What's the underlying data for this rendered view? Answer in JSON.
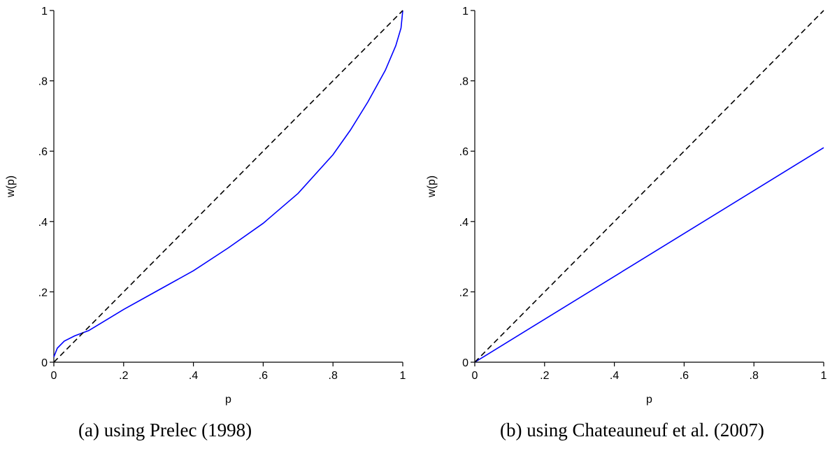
{
  "chart_data": [
    {
      "type": "line",
      "caption": "(a)  using Prelec (1998)",
      "xlabel": "p",
      "ylabel": "w(p)",
      "xlim": [
        0,
        1
      ],
      "ylim": [
        0,
        1
      ],
      "xticks": [
        "0",
        ".2",
        ".4",
        ".6",
        ".8",
        "1"
      ],
      "yticks": [
        "0",
        ".2",
        ".4",
        ".6",
        ".8",
        "1"
      ],
      "grid": false,
      "series": [
        {
          "color": "#0000ff",
          "style": "solid",
          "x": [
            0,
            0.01,
            0.03,
            0.06,
            0.1,
            0.15,
            0.2,
            0.3,
            0.4,
            0.5,
            0.6,
            0.7,
            0.8,
            0.85,
            0.9,
            0.95,
            0.98,
            0.995,
            1.0
          ],
          "y": [
            0.015,
            0.04,
            0.06,
            0.075,
            0.09,
            0.12,
            0.15,
            0.205,
            0.26,
            0.325,
            0.395,
            0.48,
            0.59,
            0.66,
            0.74,
            0.83,
            0.9,
            0.95,
            1.0
          ]
        },
        {
          "color": "#000000",
          "style": "dashed",
          "x": [
            0,
            1
          ],
          "y": [
            0,
            1
          ]
        }
      ]
    },
    {
      "type": "line",
      "caption": "(b) using Chateauneuf et al. (2007)",
      "xlabel": "p",
      "ylabel": "w(p)",
      "xlim": [
        0,
        1
      ],
      "ylim": [
        0,
        1
      ],
      "xticks": [
        "0",
        ".2",
        ".4",
        ".6",
        ".8",
        "1"
      ],
      "yticks": [
        "0",
        ".2",
        ".4",
        ".6",
        ".8",
        "1"
      ],
      "grid": false,
      "series": [
        {
          "color": "#0000ff",
          "style": "solid",
          "x": [
            0,
            1
          ],
          "y": [
            0,
            0.61
          ]
        },
        {
          "color": "#000000",
          "style": "dashed",
          "x": [
            0,
            1
          ],
          "y": [
            0,
            1
          ]
        }
      ]
    }
  ]
}
